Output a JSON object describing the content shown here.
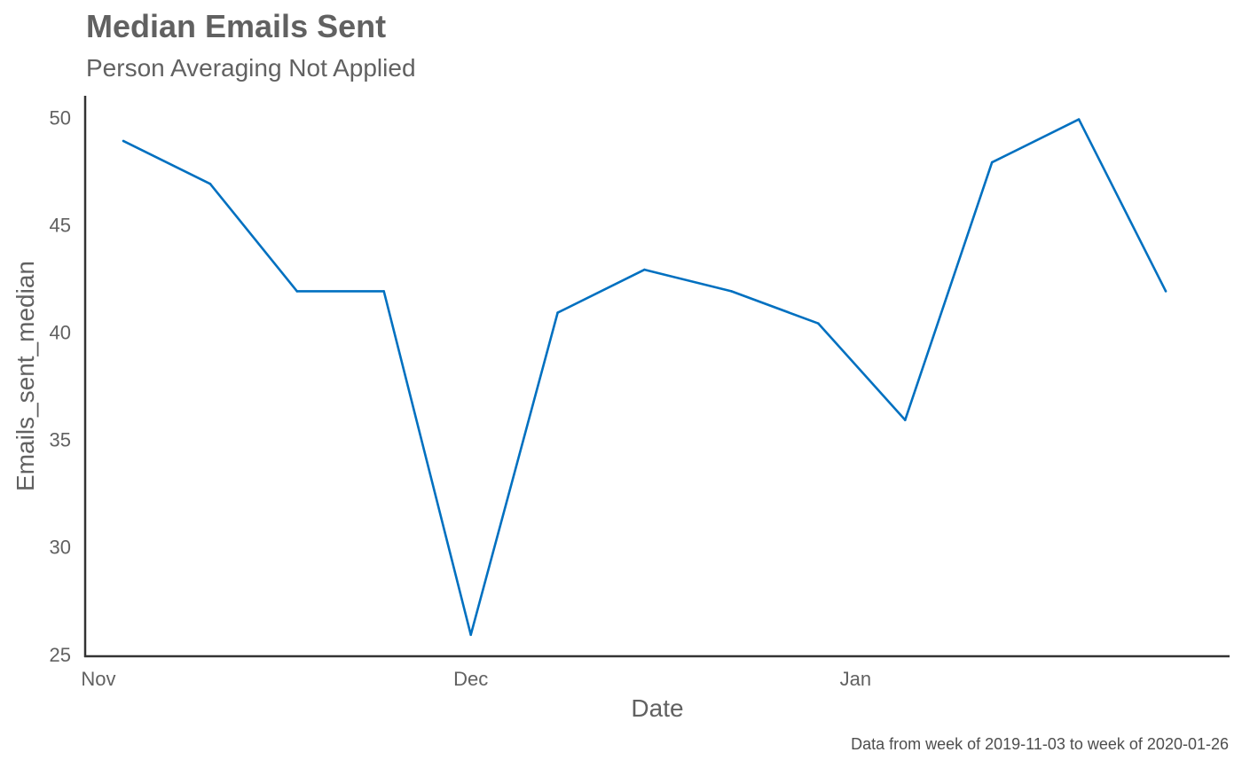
{
  "chart_data": {
    "type": "line",
    "title": "Median Emails Sent",
    "subtitle": "Person Averaging Not Applied",
    "xlabel": "Date",
    "ylabel": "Emails_sent_median",
    "caption": "Data from week of 2019-11-03 to week of 2020-01-26",
    "x_ticks": [
      {
        "label": "Nov",
        "date": "2019-11-01"
      },
      {
        "label": "Dec",
        "date": "2019-12-01"
      },
      {
        "label": "Jan",
        "date": "2020-01-01"
      }
    ],
    "xlim": [
      "2019-10-31",
      "2020-01-31"
    ],
    "y_ticks": [
      25,
      30,
      35,
      40,
      45,
      50
    ],
    "ylim": [
      25,
      51.1
    ],
    "grid": false,
    "line_color": "#0070C0",
    "axis_color": "#333333",
    "text_color": "#616161",
    "series": [
      {
        "x": [
          "2019-11-03",
          "2019-11-10",
          "2019-11-17",
          "2019-11-24",
          "2019-12-01",
          "2019-12-08",
          "2019-12-15",
          "2019-12-22",
          "2019-12-29",
          "2020-01-05",
          "2020-01-12",
          "2020-01-19",
          "2020-01-26"
        ],
        "values": [
          49,
          47,
          42,
          42,
          26,
          41,
          43,
          42,
          40.5,
          36,
          48,
          50,
          42
        ]
      }
    ]
  }
}
